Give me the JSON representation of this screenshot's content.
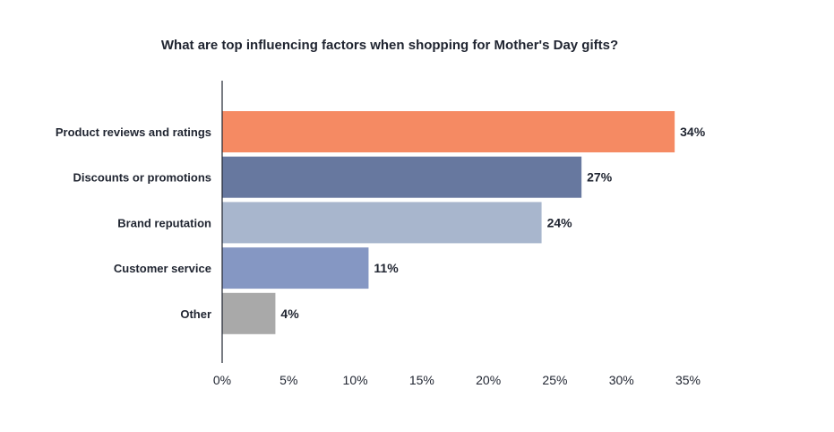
{
  "chart_data": {
    "type": "bar",
    "orientation": "horizontal",
    "title": "What are top influencing factors when shopping for Mother's Day gifts?",
    "xlabel": "",
    "ylabel": "",
    "xlim": [
      0,
      35
    ],
    "ticks": [
      0,
      5,
      10,
      15,
      20,
      25,
      30,
      35
    ],
    "tick_labels": [
      "0%",
      "5%",
      "10%",
      "15%",
      "20%",
      "25%",
      "30%",
      "35%"
    ],
    "categories": [
      "Product reviews and ratings",
      "Discounts or promotions",
      "Brand reputation",
      "Customer service",
      "Other"
    ],
    "values": [
      34,
      27,
      24,
      11,
      4
    ],
    "value_labels": [
      "34%",
      "27%",
      "24%",
      "11%",
      "4%"
    ],
    "colors": [
      "#f58a63",
      "#67789f",
      "#a8b6cd",
      "#8597c3",
      "#a9a9a9"
    ],
    "grid": false,
    "legend": "none"
  }
}
